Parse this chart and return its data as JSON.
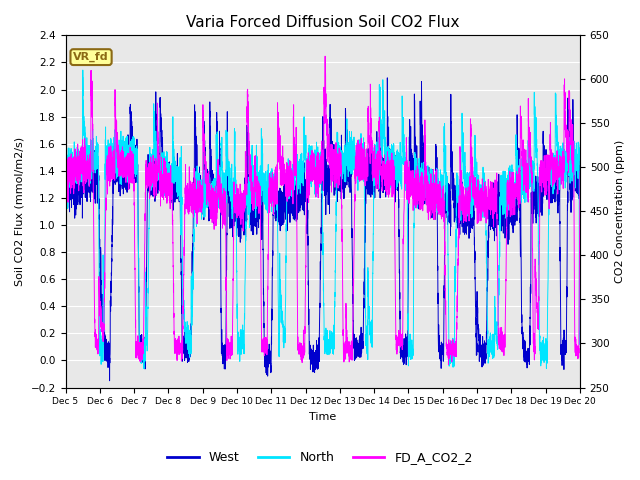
{
  "title": "Varia Forced Diffusion Soil CO2 Flux",
  "xlabel": "Time",
  "ylabel_left": "Soil CO2 Flux (mmol/m2/s)",
  "ylabel_right": "CO2 Concentration (ppm)",
  "ylim_left": [
    -0.2,
    2.4
  ],
  "ylim_right": [
    250,
    650
  ],
  "x_tick_labels": [
    "Dec 5",
    "Dec 6",
    "Dec 7",
    "Dec 8",
    "Dec 9",
    "Dec 10",
    "Dec 11",
    "Dec 12",
    "Dec 13",
    "Dec 14",
    "Dec 15",
    "Dec 16",
    "Dec 17",
    "Dec 18",
    "Dec 19",
    "Dec 20"
  ],
  "legend_labels": [
    "West",
    "North",
    "FD_A_CO2_2"
  ],
  "legend_colors": [
    "#0000cd",
    "#00e5ff",
    "#ff00ff"
  ],
  "annotation_text": "VR_fd",
  "annotation_color": "#8B6914",
  "annotation_bg": "#ffff99",
  "plot_bg": "#e8e8e8",
  "title_fontsize": 11,
  "days": 15,
  "n_points": 5000,
  "seed": 7
}
